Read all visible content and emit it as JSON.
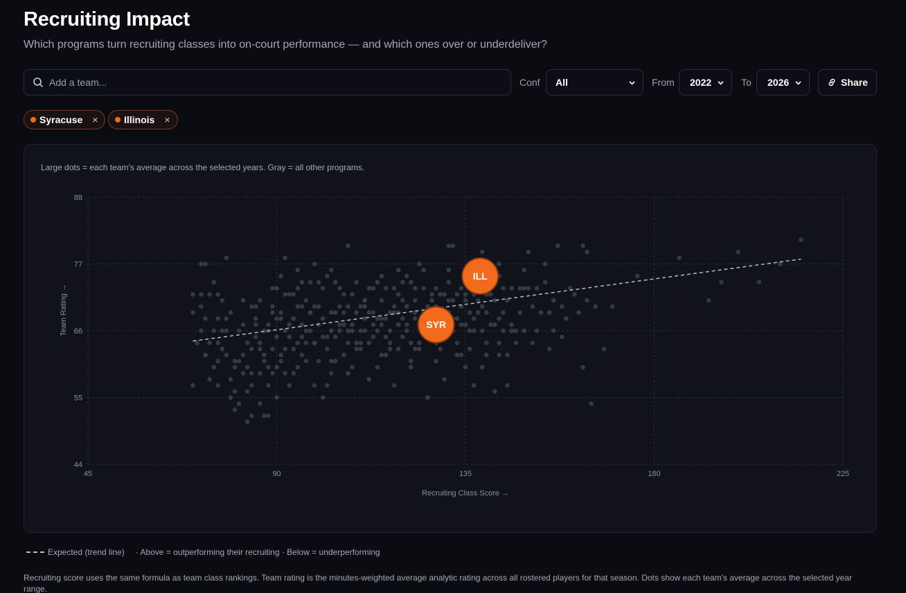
{
  "header": {
    "title": "Recruiting Impact",
    "subtitle": "Which programs turn recruiting classes into on-court performance — and which ones over or underdeliver?"
  },
  "controls": {
    "search_placeholder": "Add a team...",
    "conf_label": "Conf",
    "conf_value": "All",
    "from_label": "From",
    "from_value": "2022",
    "to_label": "To",
    "to_value": "2026",
    "share_label": "Share"
  },
  "chips": [
    {
      "label": "Syracuse",
      "remove": "×"
    },
    {
      "label": "Illinois",
      "remove": "×"
    }
  ],
  "panel_note": "Large dots = each team's average across the selected years. Gray = all other programs.",
  "legend": {
    "expected": "Expected (trend line)",
    "explain": "· Above = outperforming their recruiting · Below = underperforming"
  },
  "footnote": "Recruiting score uses the same formula as team class rankings. Team rating is the minutes-weighted average analytic rating across all rostered players for that season. Dots show each team's average across the selected year range.",
  "colors": {
    "accent": "#f26a1b",
    "other_points": "#3c404c",
    "trend": "#b7bcc8"
  },
  "chart_data": {
    "type": "scatter",
    "title": "",
    "xlabel": "Recruiting Class Score →",
    "ylabel": "Team Rating →",
    "xlim": [
      45,
      225
    ],
    "ylim": [
      44,
      88
    ],
    "xticks": [
      45,
      90,
      135,
      180,
      225
    ],
    "yticks": [
      44,
      55,
      66,
      77,
      88
    ],
    "grid": true,
    "trend_line": {
      "x": [
        70,
        215
      ],
      "y": [
        64.3,
        77.8
      ]
    },
    "highlight": [
      {
        "label": "SYR",
        "x": 128,
        "y": 67.0
      },
      {
        "label": "ILL",
        "x": 138.5,
        "y": 75.0
      }
    ],
    "others": [
      [
        70,
        57
      ],
      [
        70,
        72
      ],
      [
        70,
        69
      ],
      [
        71,
        64
      ],
      [
        72,
        72
      ],
      [
        72,
        66
      ],
      [
        72,
        77
      ],
      [
        73,
        77
      ],
      [
        73,
        68
      ],
      [
        73,
        62
      ],
      [
        74,
        72
      ],
      [
        74,
        58
      ],
      [
        75,
        66
      ],
      [
        75,
        60
      ],
      [
        75,
        74
      ],
      [
        76,
        72
      ],
      [
        76,
        68
      ],
      [
        76,
        64
      ],
      [
        77,
        66
      ],
      [
        77,
        63
      ],
      [
        78,
        68
      ],
      [
        78,
        78
      ],
      [
        78,
        62
      ],
      [
        79,
        69
      ],
      [
        80,
        56
      ],
      [
        80,
        60
      ],
      [
        81,
        61
      ],
      [
        82,
        67
      ],
      [
        82,
        59
      ],
      [
        83,
        64
      ],
      [
        83,
        56
      ],
      [
        84,
        57
      ],
      [
        84,
        52
      ],
      [
        85,
        67
      ],
      [
        85,
        70
      ],
      [
        86,
        54
      ],
      [
        86,
        63
      ],
      [
        87,
        61
      ],
      [
        88,
        52
      ],
      [
        88,
        66
      ],
      [
        89,
        69
      ],
      [
        89,
        59
      ],
      [
        90,
        60
      ],
      [
        91,
        62
      ],
      [
        91,
        69
      ],
      [
        92,
        66
      ],
      [
        92,
        78
      ],
      [
        93,
        57
      ],
      [
        94,
        63
      ],
      [
        95,
        60
      ],
      [
        96,
        65
      ],
      [
        96,
        74
      ],
      [
        97,
        61
      ],
      [
        98,
        69
      ],
      [
        99,
        64
      ],
      [
        100,
        67
      ],
      [
        101,
        55
      ],
      [
        102,
        75
      ],
      [
        103,
        59
      ],
      [
        104,
        69
      ],
      [
        105,
        66
      ],
      [
        106,
        72
      ],
      [
        107,
        59
      ],
      [
        108,
        66
      ],
      [
        109,
        63
      ],
      [
        110,
        63
      ],
      [
        111,
        71
      ],
      [
        112,
        58
      ],
      [
        113,
        67
      ],
      [
        114,
        74
      ],
      [
        115,
        68
      ],
      [
        116,
        62
      ],
      [
        117,
        69
      ],
      [
        118,
        57
      ],
      [
        119,
        63
      ],
      [
        120,
        74
      ],
      [
        121,
        66
      ],
      [
        122,
        61
      ],
      [
        123,
        69
      ],
      [
        124,
        63
      ],
      [
        125,
        66
      ],
      [
        126,
        55
      ],
      [
        127,
        71
      ],
      [
        128,
        64
      ],
      [
        129,
        69
      ],
      [
        130,
        58
      ],
      [
        131,
        74
      ],
      [
        132,
        80
      ],
      [
        133,
        62
      ],
      [
        134,
        67
      ],
      [
        135,
        71
      ],
      [
        136,
        66
      ],
      [
        137,
        57
      ],
      [
        138,
        69
      ],
      [
        139,
        60
      ],
      [
        140,
        64
      ],
      [
        141,
        73
      ],
      [
        142,
        56
      ],
      [
        143,
        64
      ],
      [
        144,
        66
      ],
      [
        145,
        57
      ],
      [
        146,
        73
      ],
      [
        147,
        66
      ],
      [
        148,
        73
      ],
      [
        149,
        73
      ],
      [
        150,
        73
      ],
      [
        151,
        70
      ],
      [
        152,
        66
      ],
      [
        153,
        69
      ],
      [
        154,
        77
      ],
      [
        155,
        69
      ],
      [
        156,
        71
      ],
      [
        158,
        70
      ],
      [
        159,
        68
      ],
      [
        162,
        69
      ],
      [
        163,
        60
      ],
      [
        164,
        71
      ],
      [
        164,
        79
      ],
      [
        165,
        54
      ],
      [
        168,
        63
      ],
      [
        170,
        70
      ],
      [
        176,
        75
      ],
      [
        186,
        78
      ],
      [
        193,
        71
      ],
      [
        196,
        74
      ],
      [
        200,
        79
      ],
      [
        205,
        74
      ],
      [
        210,
        77
      ],
      [
        215,
        81
      ],
      [
        72,
        70
      ],
      [
        79,
        58
      ],
      [
        81,
        66
      ],
      [
        84,
        70
      ],
      [
        88,
        60
      ],
      [
        90,
        73
      ],
      [
        93,
        72
      ],
      [
        96,
        67
      ],
      [
        99,
        70
      ],
      [
        102,
        63
      ],
      [
        105,
        70
      ],
      [
        108,
        60
      ],
      [
        111,
        66
      ],
      [
        114,
        60
      ],
      [
        117,
        63
      ],
      [
        120,
        68
      ],
      [
        123,
        71
      ],
      [
        126,
        66
      ],
      [
        129,
        72
      ],
      [
        132,
        68
      ],
      [
        136,
        63
      ],
      [
        139,
        66
      ],
      [
        142,
        67
      ],
      [
        145,
        62
      ],
      [
        148,
        69
      ],
      [
        151,
        64
      ],
      [
        155,
        63
      ],
      [
        158,
        65
      ],
      [
        160,
        73
      ],
      [
        163,
        80
      ],
      [
        74,
        64
      ],
      [
        76,
        57
      ],
      [
        78,
        66
      ],
      [
        80,
        61
      ],
      [
        82,
        71
      ],
      [
        84,
        63
      ],
      [
        86,
        71
      ],
      [
        88,
        57
      ],
      [
        90,
        65
      ],
      [
        92,
        59
      ],
      [
        94,
        72
      ],
      [
        96,
        62
      ],
      [
        98,
        74
      ],
      [
        100,
        70
      ],
      [
        102,
        57
      ],
      [
        104,
        61
      ],
      [
        106,
        67
      ],
      [
        108,
        72
      ],
      [
        110,
        64
      ],
      [
        112,
        69
      ],
      [
        114,
        66
      ],
      [
        116,
        73
      ],
      [
        118,
        69
      ],
      [
        120,
        65
      ],
      [
        122,
        60
      ],
      [
        124,
        77
      ],
      [
        126,
        70
      ],
      [
        128,
        61
      ],
      [
        130,
        65
      ],
      [
        132,
        71
      ],
      [
        134,
        62
      ],
      [
        136,
        76
      ],
      [
        138,
        71
      ],
      [
        140,
        62
      ],
      [
        142,
        76
      ],
      [
        144,
        69
      ],
      [
        146,
        67
      ],
      [
        150,
        79
      ],
      [
        154,
        74
      ],
      [
        157,
        80
      ],
      [
        80,
        53
      ],
      [
        82,
        62
      ],
      [
        85,
        65
      ],
      [
        87,
        66
      ],
      [
        89,
        73
      ],
      [
        91,
        68
      ],
      [
        93,
        67
      ],
      [
        95,
        76
      ],
      [
        97,
        66
      ],
      [
        99,
        77
      ],
      [
        101,
        68
      ],
      [
        103,
        61
      ],
      [
        105,
        73
      ],
      [
        107,
        66
      ],
      [
        109,
        64
      ],
      [
        111,
        71
      ],
      [
        113,
        65
      ],
      [
        115,
        71
      ],
      [
        117,
        64
      ],
      [
        119,
        72
      ],
      [
        121,
        67
      ],
      [
        123,
        63
      ],
      [
        125,
        76
      ],
      [
        127,
        68
      ],
      [
        129,
        63
      ],
      [
        131,
        80
      ],
      [
        133,
        68
      ],
      [
        135,
        72
      ],
      [
        137,
        68
      ],
      [
        139,
        74
      ],
      [
        141,
        67
      ],
      [
        143,
        75
      ],
      [
        145,
        71
      ],
      [
        147,
        64
      ],
      [
        149,
        66
      ],
      [
        152,
        73
      ],
      [
        156,
        66
      ],
      [
        161,
        72
      ],
      [
        166,
        70
      ],
      [
        73,
        62
      ],
      [
        77,
        71
      ],
      [
        83,
        51
      ],
      [
        86,
        59
      ],
      [
        90,
        55
      ],
      [
        94,
        59
      ],
      [
        97,
        71
      ],
      [
        100,
        74
      ],
      [
        103,
        66
      ],
      [
        106,
        62
      ],
      [
        109,
        69
      ],
      [
        112,
        73
      ],
      [
        115,
        62
      ],
      [
        118,
        70
      ],
      [
        121,
        75
      ],
      [
        124,
        64
      ],
      [
        127,
        68
      ],
      [
        130,
        66
      ],
      [
        133,
        64
      ],
      [
        137,
        66
      ],
      [
        140,
        69
      ],
      [
        143,
        62
      ],
      [
        146,
        66
      ],
      [
        149,
        76
      ],
      [
        85,
        68
      ],
      [
        87,
        62
      ],
      [
        89,
        63
      ],
      [
        91,
        75
      ],
      [
        93,
        65
      ],
      [
        95,
        70
      ],
      [
        97,
        64
      ],
      [
        99,
        64
      ],
      [
        101,
        73
      ],
      [
        103,
        69
      ],
      [
        105,
        67
      ],
      [
        107,
        64
      ],
      [
        109,
        74
      ],
      [
        111,
        68
      ],
      [
        113,
        73
      ],
      [
        115,
        67
      ],
      [
        117,
        66
      ],
      [
        119,
        67
      ],
      [
        121,
        70
      ],
      [
        123,
        68
      ],
      [
        125,
        73
      ],
      [
        127,
        65
      ],
      [
        129,
        69
      ],
      [
        131,
        69
      ],
      [
        133,
        72
      ],
      [
        135,
        67
      ],
      [
        137,
        73
      ],
      [
        139,
        70
      ],
      [
        141,
        72
      ],
      [
        143,
        68
      ],
      [
        86,
        64
      ],
      [
        88,
        67
      ],
      [
        90,
        68
      ],
      [
        92,
        63
      ],
      [
        94,
        68
      ],
      [
        96,
        70
      ],
      [
        98,
        66
      ],
      [
        100,
        61
      ],
      [
        102,
        65
      ],
      [
        104,
        65
      ],
      [
        106,
        69
      ],
      [
        108,
        67
      ],
      [
        110,
        70
      ],
      [
        112,
        64
      ],
      [
        114,
        68
      ],
      [
        116,
        65
      ],
      [
        118,
        73
      ],
      [
        120,
        71
      ],
      [
        122,
        74
      ],
      [
        124,
        67
      ],
      [
        126,
        68
      ],
      [
        128,
        70
      ],
      [
        130,
        72
      ],
      [
        132,
        66
      ],
      [
        134,
        70
      ],
      [
        136,
        69
      ],
      [
        138,
        73
      ],
      [
        140,
        72
      ],
      [
        142,
        71
      ],
      [
        144,
        73
      ],
      [
        84,
        59
      ],
      [
        89,
        70
      ],
      [
        92,
        72
      ],
      [
        95,
        73
      ],
      [
        98,
        69
      ],
      [
        101,
        65
      ],
      [
        104,
        74
      ],
      [
        107,
        70
      ],
      [
        110,
        66
      ],
      [
        113,
        69
      ],
      [
        116,
        68
      ],
      [
        119,
        69
      ],
      [
        122,
        64
      ],
      [
        125,
        69
      ],
      [
        128,
        73
      ],
      [
        131,
        71
      ],
      [
        134,
        73
      ],
      [
        137,
        72
      ],
      [
        76,
        61
      ],
      [
        79,
        55
      ],
      [
        81,
        54
      ],
      [
        83,
        60
      ],
      [
        87,
        52
      ],
      [
        91,
        61
      ],
      [
        95,
        64
      ],
      [
        99,
        57
      ],
      [
        103,
        76
      ],
      [
        107,
        80
      ],
      [
        111,
        70
      ],
      [
        115,
        75
      ],
      [
        119,
        76
      ],
      [
        123,
        73
      ],
      [
        127,
        72
      ],
      [
        131,
        76
      ],
      [
        135,
        60
      ],
      [
        139,
        79
      ],
      [
        143,
        77
      ]
    ]
  }
}
